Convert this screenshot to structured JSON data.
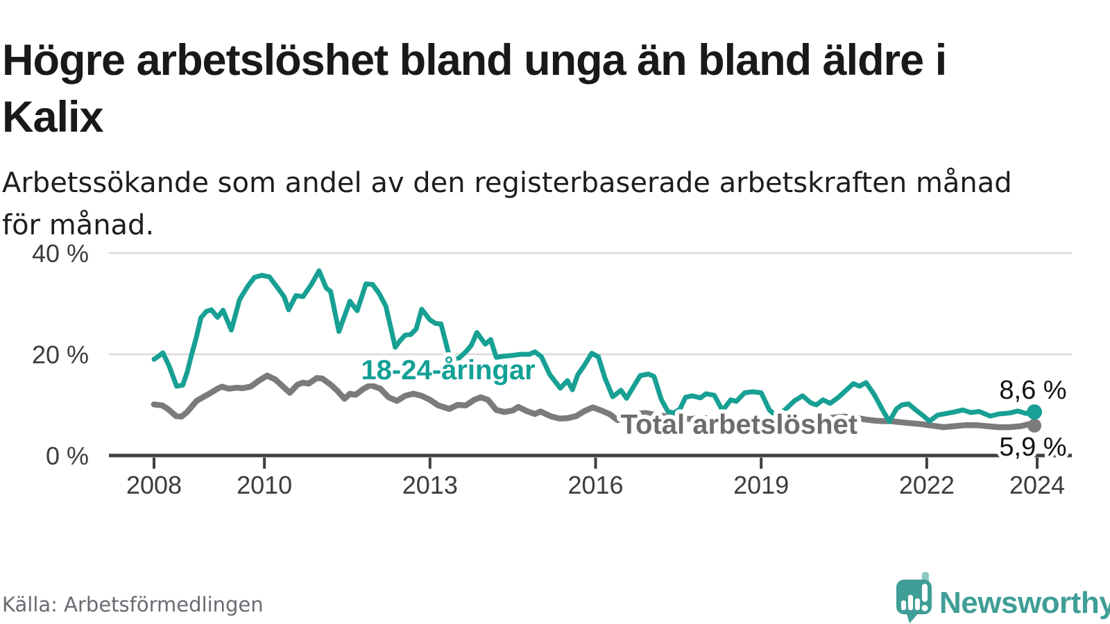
{
  "page": {
    "title_lines": [
      "Högre arbetslöshet bland unga än bland äldre i",
      "Kalix"
    ],
    "subtitle_lines": [
      "Arbetssökande som andel av den registerbaserade arbetskraften månad",
      "för månad."
    ],
    "source": "Källa: Arbetsförmedlingen",
    "brand": {
      "name": "Newsworthy",
      "icon": "speech-bubble-bar-chart-icon",
      "color": "#3f9e96",
      "icon_light_accent": "#8ac8c2"
    }
  },
  "chart_data": {
    "type": "line",
    "title": "Högre arbetslöshet bland unga än bland äldre i Kalix",
    "subtitle": "Arbetssökande som andel av den registerbaserade arbetskraften månad för månad.",
    "unit": "%",
    "grid": "horizontal",
    "legend_position": "inline-labels",
    "x_axis": {
      "range": [
        2008,
        2024.6
      ],
      "ticks": [
        {
          "v": 2008,
          "label": "2008"
        },
        {
          "v": 2010,
          "label": "2010"
        },
        {
          "v": 2013,
          "label": "2013"
        },
        {
          "v": 2016,
          "label": "2016"
        },
        {
          "v": 2019,
          "label": "2019"
        },
        {
          "v": 2022,
          "label": "2022"
        },
        {
          "v": 2024,
          "label": "2024"
        }
      ]
    },
    "y_axis": {
      "range": [
        0,
        42
      ],
      "gridlines": true,
      "ticks": [
        {
          "v": 0,
          "label": "0 %"
        },
        {
          "v": 20,
          "label": "20 %"
        },
        {
          "v": 40,
          "label": "40 %"
        }
      ]
    },
    "colors": {
      "grid": "#d9d9d9",
      "axis": "#3f3f3f",
      "tick_label": "#3c3c3c",
      "value_label": "#111111",
      "halo": "#ffffff"
    },
    "series": [
      {
        "name": "Total arbetslöshet",
        "color": "#7b7b7b",
        "label_color": "#6d6d6d",
        "stroke_width": 8.5,
        "dot_radius": 10,
        "end_label": "5,9 %",
        "end_value": 5.9,
        "end_label_side": "below",
        "label_pos": {
          "x": 2018.6,
          "y": 6.2
        },
        "points": [
          [
            2008.0,
            10.1
          ],
          [
            2008.15,
            9.9
          ],
          [
            2008.25,
            9.2
          ],
          [
            2008.4,
            7.8
          ],
          [
            2008.5,
            7.7
          ],
          [
            2008.6,
            8.6
          ],
          [
            2008.77,
            10.8
          ],
          [
            2008.9,
            11.6
          ],
          [
            2009.0,
            12.2
          ],
          [
            2009.15,
            13.2
          ],
          [
            2009.23,
            13.6
          ],
          [
            2009.35,
            13.2
          ],
          [
            2009.5,
            13.4
          ],
          [
            2009.6,
            13.3
          ],
          [
            2009.75,
            13.6
          ],
          [
            2009.9,
            14.8
          ],
          [
            2010.05,
            15.8
          ],
          [
            2010.2,
            15.0
          ],
          [
            2010.35,
            13.5
          ],
          [
            2010.46,
            12.4
          ],
          [
            2010.6,
            14.0
          ],
          [
            2010.7,
            14.4
          ],
          [
            2010.8,
            14.2
          ],
          [
            2010.95,
            15.3
          ],
          [
            2011.05,
            15.2
          ],
          [
            2011.2,
            14.0
          ],
          [
            2011.33,
            12.7
          ],
          [
            2011.45,
            11.2
          ],
          [
            2011.55,
            12.2
          ],
          [
            2011.65,
            12.0
          ],
          [
            2011.8,
            13.2
          ],
          [
            2011.92,
            13.9
          ],
          [
            2012.1,
            13.2
          ],
          [
            2012.25,
            11.5
          ],
          [
            2012.4,
            10.8
          ],
          [
            2012.55,
            11.8
          ],
          [
            2012.7,
            12.2
          ],
          [
            2012.85,
            11.8
          ],
          [
            2013.0,
            11.0
          ],
          [
            2013.15,
            9.9
          ],
          [
            2013.35,
            9.2
          ],
          [
            2013.5,
            10.0
          ],
          [
            2013.65,
            9.9
          ],
          [
            2013.8,
            11.0
          ],
          [
            2013.92,
            11.5
          ],
          [
            2014.05,
            11.0
          ],
          [
            2014.2,
            9.0
          ],
          [
            2014.35,
            8.6
          ],
          [
            2014.5,
            8.9
          ],
          [
            2014.6,
            9.6
          ],
          [
            2014.75,
            8.8
          ],
          [
            2014.9,
            8.2
          ],
          [
            2015.0,
            8.7
          ],
          [
            2015.2,
            7.7
          ],
          [
            2015.35,
            7.3
          ],
          [
            2015.5,
            7.4
          ],
          [
            2015.65,
            7.8
          ],
          [
            2015.8,
            8.8
          ],
          [
            2015.95,
            9.5
          ],
          [
            2016.1,
            8.9
          ],
          [
            2016.25,
            8.2
          ],
          [
            2016.4,
            7.0
          ],
          [
            2016.55,
            7.6
          ],
          [
            2016.7,
            8.2
          ],
          [
            2016.9,
            8.4
          ],
          [
            2017.1,
            8.0
          ],
          [
            2017.3,
            7.7
          ],
          [
            2017.5,
            7.5
          ],
          [
            2017.7,
            7.2
          ],
          [
            2017.9,
            7.4
          ],
          [
            2018.1,
            7.3
          ],
          [
            2018.3,
            7.0
          ],
          [
            2018.5,
            6.8
          ],
          [
            2018.7,
            7.0
          ],
          [
            2018.9,
            7.2
          ],
          [
            2019.1,
            7.0
          ],
          [
            2019.3,
            6.8
          ],
          [
            2019.5,
            6.7
          ],
          [
            2019.7,
            6.8
          ],
          [
            2019.9,
            7.0
          ],
          [
            2020.1,
            7.2
          ],
          [
            2020.3,
            7.5
          ],
          [
            2020.5,
            7.7
          ],
          [
            2020.7,
            7.5
          ],
          [
            2020.9,
            7.1
          ],
          [
            2021.05,
            6.9
          ],
          [
            2021.2,
            6.8
          ],
          [
            2021.35,
            6.8
          ],
          [
            2021.5,
            6.6
          ],
          [
            2021.7,
            6.4
          ],
          [
            2021.9,
            6.2
          ],
          [
            2022.1,
            5.9
          ],
          [
            2022.3,
            5.6
          ],
          [
            2022.5,
            5.8
          ],
          [
            2022.7,
            6.0
          ],
          [
            2022.9,
            6.0
          ],
          [
            2023.1,
            5.8
          ],
          [
            2023.3,
            5.6
          ],
          [
            2023.5,
            5.6
          ],
          [
            2023.7,
            5.8
          ],
          [
            2023.85,
            6.2
          ],
          [
            2023.95,
            5.9
          ]
        ]
      },
      {
        "name": "18-24-åringar",
        "color": "#17a093",
        "label_color": "#12a096",
        "stroke_width": 7,
        "dot_radius": 11,
        "end_label": "8,6 %",
        "end_value": 8.6,
        "end_label_side": "above",
        "label_pos": {
          "x": 2013.33,
          "y": 17.0
        },
        "points": [
          [
            2008.0,
            19.0
          ],
          [
            2008.08,
            19.6
          ],
          [
            2008.16,
            20.3
          ],
          [
            2008.27,
            17.8
          ],
          [
            2008.41,
            13.7
          ],
          [
            2008.52,
            13.9
          ],
          [
            2008.6,
            16.4
          ],
          [
            2008.68,
            19.9
          ],
          [
            2008.77,
            23.5
          ],
          [
            2008.85,
            27.2
          ],
          [
            2008.95,
            28.5
          ],
          [
            2009.04,
            28.8
          ],
          [
            2009.15,
            27.3
          ],
          [
            2009.25,
            28.7
          ],
          [
            2009.4,
            24.8
          ],
          [
            2009.55,
            30.8
          ],
          [
            2009.7,
            33.5
          ],
          [
            2009.82,
            35.2
          ],
          [
            2009.95,
            35.6
          ],
          [
            2010.09,
            35.3
          ],
          [
            2010.25,
            33.0
          ],
          [
            2010.36,
            31.3
          ],
          [
            2010.44,
            28.8
          ],
          [
            2010.57,
            31.6
          ],
          [
            2010.7,
            31.4
          ],
          [
            2010.85,
            33.8
          ],
          [
            2010.99,
            36.5
          ],
          [
            2011.12,
            33.1
          ],
          [
            2011.2,
            32.4
          ],
          [
            2011.35,
            24.5
          ],
          [
            2011.55,
            30.5
          ],
          [
            2011.68,
            28.6
          ],
          [
            2011.84,
            33.9
          ],
          [
            2011.96,
            33.8
          ],
          [
            2012.08,
            32.0
          ],
          [
            2012.2,
            29.5
          ],
          [
            2012.37,
            21.4
          ],
          [
            2012.45,
            22.6
          ],
          [
            2012.55,
            23.8
          ],
          [
            2012.65,
            23.9
          ],
          [
            2012.75,
            25.0
          ],
          [
            2012.85,
            28.9
          ],
          [
            2013.0,
            26.8
          ],
          [
            2013.1,
            26.1
          ],
          [
            2013.2,
            26.0
          ],
          [
            2013.35,
            19.6
          ],
          [
            2013.5,
            19.0
          ],
          [
            2013.65,
            20.5
          ],
          [
            2013.75,
            21.8
          ],
          [
            2013.85,
            24.3
          ],
          [
            2014.0,
            22.0
          ],
          [
            2014.1,
            22.9
          ],
          [
            2014.2,
            19.4
          ],
          [
            2014.33,
            19.6
          ],
          [
            2014.5,
            19.8
          ],
          [
            2014.65,
            20.0
          ],
          [
            2014.8,
            20.0
          ],
          [
            2014.9,
            20.5
          ],
          [
            2015.02,
            19.5
          ],
          [
            2015.17,
            16.0
          ],
          [
            2015.36,
            13.3
          ],
          [
            2015.49,
            14.8
          ],
          [
            2015.58,
            13.0
          ],
          [
            2015.68,
            16.0
          ],
          [
            2015.79,
            17.7
          ],
          [
            2015.93,
            20.2
          ],
          [
            2016.05,
            19.5
          ],
          [
            2016.17,
            15.3
          ],
          [
            2016.31,
            11.6
          ],
          [
            2016.46,
            12.9
          ],
          [
            2016.56,
            11.3
          ],
          [
            2016.81,
            15.8
          ],
          [
            2016.96,
            16.1
          ],
          [
            2017.06,
            15.6
          ],
          [
            2017.19,
            11.1
          ],
          [
            2017.31,
            8.7
          ],
          [
            2017.42,
            8.4
          ],
          [
            2017.53,
            9.2
          ],
          [
            2017.63,
            11.5
          ],
          [
            2017.75,
            11.8
          ],
          [
            2017.9,
            11.4
          ],
          [
            2018.0,
            12.2
          ],
          [
            2018.15,
            11.9
          ],
          [
            2018.3,
            8.9
          ],
          [
            2018.45,
            11.0
          ],
          [
            2018.55,
            10.7
          ],
          [
            2018.7,
            12.4
          ],
          [
            2018.85,
            12.6
          ],
          [
            2019.0,
            12.4
          ],
          [
            2019.15,
            9.0
          ],
          [
            2019.27,
            7.8
          ],
          [
            2019.45,
            9.2
          ],
          [
            2019.6,
            10.8
          ],
          [
            2019.75,
            11.8
          ],
          [
            2019.9,
            10.4
          ],
          [
            2020.0,
            10.0
          ],
          [
            2020.12,
            11.0
          ],
          [
            2020.25,
            10.3
          ],
          [
            2020.4,
            11.5
          ],
          [
            2020.55,
            13.0
          ],
          [
            2020.67,
            14.2
          ],
          [
            2020.78,
            13.7
          ],
          [
            2020.9,
            14.4
          ],
          [
            2021.05,
            12.0
          ],
          [
            2021.2,
            9.0
          ],
          [
            2021.32,
            6.7
          ],
          [
            2021.45,
            9.2
          ],
          [
            2021.55,
            10.0
          ],
          [
            2021.67,
            10.2
          ],
          [
            2021.8,
            9.0
          ],
          [
            2021.92,
            8.0
          ],
          [
            2022.05,
            6.8
          ],
          [
            2022.2,
            8.0
          ],
          [
            2022.35,
            8.3
          ],
          [
            2022.5,
            8.6
          ],
          [
            2022.65,
            9.0
          ],
          [
            2022.8,
            8.5
          ],
          [
            2022.95,
            8.7
          ],
          [
            2023.15,
            7.8
          ],
          [
            2023.3,
            8.2
          ],
          [
            2023.5,
            8.4
          ],
          [
            2023.65,
            8.8
          ],
          [
            2023.8,
            8.3
          ],
          [
            2023.95,
            8.6
          ]
        ]
      }
    ]
  }
}
